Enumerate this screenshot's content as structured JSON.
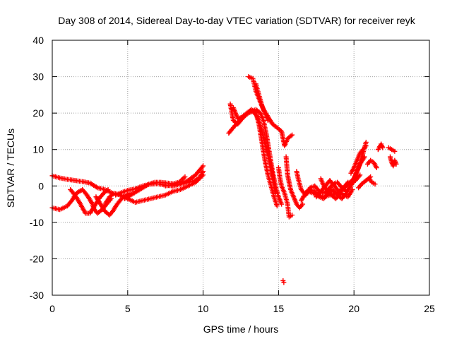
{
  "chart_data": {
    "type": "scatter",
    "title": "Day 308 of 2014, Sidereal Day-to-day VTEC variation (SDTVAR) for receiver reyk",
    "xlabel": "GPS time / hours",
    "ylabel": "SDTVAR / TECUs",
    "xlim": [
      0,
      25
    ],
    "ylim": [
      -30,
      40
    ],
    "xticks": [
      0,
      5,
      10,
      15,
      20,
      25
    ],
    "yticks": [
      -30,
      -20,
      -10,
      0,
      10,
      20,
      30,
      40
    ],
    "xtick_labels": [
      "0",
      "5",
      "10",
      "15",
      "20",
      "25"
    ],
    "ytick_labels": [
      "-30",
      "-20",
      "-10",
      "0",
      "10",
      "20",
      "30",
      "40"
    ],
    "grid": true,
    "marker": "+",
    "series": [
      {
        "name": "SDTVAR",
        "color": "#ff0000",
        "tracks": [
          [
            [
              0,
              2.8
            ],
            [
              0.5,
              2.2
            ],
            [
              1,
              1.8
            ],
            [
              1.5,
              1.5
            ],
            [
              2,
              1.2
            ],
            [
              2.5,
              0.8
            ],
            [
              3,
              -0.5
            ],
            [
              3.5,
              -1
            ],
            [
              4,
              -2
            ],
            [
              4.5,
              -2.5
            ]
          ],
          [
            [
              0,
              -6
            ],
            [
              0.5,
              -6.5
            ],
            [
              1,
              -5.5
            ],
            [
              1.3,
              -4
            ],
            [
              1.6,
              -2
            ],
            [
              2,
              -1
            ],
            [
              2.3,
              -2.5
            ],
            [
              2.6,
              -4.5
            ],
            [
              2.8,
              -6.5
            ],
            [
              3,
              -7.5
            ],
            [
              3.3,
              -6.5
            ],
            [
              3.6,
              -5
            ],
            [
              3.9,
              -3.5
            ]
          ],
          [
            [
              1.2,
              -1
            ],
            [
              1.5,
              -2.5
            ],
            [
              1.8,
              -4.5
            ],
            [
              2,
              -6
            ],
            [
              2.2,
              -7.5
            ],
            [
              2.5,
              -7.5
            ],
            [
              2.8,
              -5.5
            ],
            [
              3.1,
              -3.5
            ],
            [
              3.4,
              -2
            ],
            [
              3.7,
              -1
            ]
          ],
          [
            [
              2.9,
              -3
            ],
            [
              3.2,
              -5
            ],
            [
              3.5,
              -7
            ],
            [
              3.8,
              -8
            ],
            [
              4,
              -7
            ],
            [
              4.3,
              -5
            ],
            [
              4.6,
              -3.5
            ],
            [
              4.9,
              -2.5
            ],
            [
              5.2,
              -2
            ]
          ],
          [
            [
              3.5,
              -5
            ],
            [
              3.8,
              -3
            ],
            [
              4.1,
              -2
            ],
            [
              4.5,
              -2.5
            ],
            [
              5,
              -3.5
            ],
            [
              5.5,
              -4.5
            ],
            [
              6,
              -4
            ],
            [
              6.5,
              -3.5
            ],
            [
              7,
              -3
            ],
            [
              7.5,
              -2.5
            ],
            [
              8,
              -1.5
            ],
            [
              8.5,
              -1
            ],
            [
              9,
              0
            ],
            [
              9.5,
              1
            ],
            [
              10,
              3
            ]
          ],
          [
            [
              4.2,
              -2.5
            ],
            [
              4.6,
              -1.8
            ],
            [
              5,
              -1.2
            ],
            [
              5.5,
              -0.8
            ],
            [
              6,
              0
            ],
            [
              6.5,
              0.5
            ],
            [
              7,
              0.6
            ],
            [
              7.5,
              0.2
            ],
            [
              8,
              0
            ],
            [
              8.5,
              0.5
            ],
            [
              9,
              1.5
            ],
            [
              9.5,
              3
            ],
            [
              10,
              5.5
            ]
          ],
          [
            [
              4.8,
              -3.5
            ],
            [
              5.2,
              -2.5
            ],
            [
              5.6,
              -1.5
            ],
            [
              6,
              -0.5
            ],
            [
              6.4,
              0.5
            ],
            [
              6.8,
              1
            ],
            [
              7.2,
              1
            ],
            [
              7.6,
              0.8
            ],
            [
              8,
              0.6
            ],
            [
              8.4,
              1
            ],
            [
              8.8,
              2.5
            ]
          ],
          [
            [
              7.5,
              0
            ],
            [
              8,
              0.3
            ],
            [
              8.5,
              0.5
            ],
            [
              9,
              1
            ],
            [
              9.5,
              1.5
            ],
            [
              9.8,
              2.5
            ],
            [
              10,
              4
            ]
          ],
          [
            [
              11.7,
              14.5
            ],
            [
              12,
              16
            ],
            [
              12.3,
              17.5
            ],
            [
              12.6,
              19
            ],
            [
              12.9,
              20
            ],
            [
              13.2,
              20.5
            ],
            [
              13.5,
              21
            ],
            [
              13.8,
              20
            ],
            [
              14,
              18
            ],
            [
              14.2,
              14
            ],
            [
              14.4,
              9
            ],
            [
              14.6,
              4
            ],
            [
              14.8,
              0
            ],
            [
              15,
              -3
            ],
            [
              15.2,
              -5
            ]
          ],
          [
            [
              11.8,
              22.5
            ],
            [
              12,
              18
            ],
            [
              12.3,
              17
            ],
            [
              12.6,
              18.5
            ],
            [
              12.9,
              20
            ],
            [
              13.2,
              21
            ],
            [
              13.5,
              20
            ],
            [
              13.7,
              17
            ],
            [
              13.9,
              12
            ],
            [
              14.1,
              7
            ],
            [
              14.3,
              3
            ],
            [
              14.5,
              0
            ],
            [
              14.7,
              -3
            ],
            [
              14.9,
              -5.5
            ]
          ],
          [
            [
              12,
              21.5
            ],
            [
              12.3,
              18.5
            ],
            [
              12.7,
              19
            ],
            [
              13,
              20
            ],
            [
              13.3,
              20.5
            ],
            [
              13.6,
              19
            ],
            [
              13.9,
              15
            ],
            [
              14.2,
              10
            ],
            [
              14.5,
              5
            ],
            [
              14.8,
              -2
            ]
          ],
          [
            [
              13,
              30
            ],
            [
              13.3,
              29.5
            ],
            [
              13.5,
              26
            ],
            [
              13.7,
              24
            ],
            [
              14,
              21
            ],
            [
              14.3,
              19
            ],
            [
              14.6,
              17
            ],
            [
              14.9,
              16
            ],
            [
              15.2,
              15
            ],
            [
              15.4,
              11
            ],
            [
              15.6,
              13
            ],
            [
              15.9,
              14
            ]
          ],
          [
            [
              13.5,
              28
            ],
            [
              13.7,
              25
            ],
            [
              13.9,
              22
            ],
            [
              14.1,
              20
            ],
            [
              14.3,
              18
            ]
          ],
          [
            [
              15,
              5
            ],
            [
              15.1,
              2
            ],
            [
              15.2,
              0
            ],
            [
              15.4,
              -2
            ],
            [
              15.6,
              -5
            ],
            [
              15.7,
              -8.5
            ],
            [
              15.9,
              -8
            ]
          ],
          [
            [
              15.3,
              -26
            ],
            [
              15.35,
              -26.5
            ]
          ],
          [
            [
              15.5,
              8
            ],
            [
              15.6,
              3
            ],
            [
              15.8,
              -1
            ],
            [
              16,
              -3
            ],
            [
              16.2,
              -5
            ],
            [
              16.4,
              -6
            ],
            [
              16.6,
              -5
            ]
          ],
          [
            [
              16.2,
              4
            ],
            [
              16.3,
              2
            ],
            [
              16.5,
              -1
            ],
            [
              16.7,
              -2
            ],
            [
              17,
              -1.5
            ],
            [
              17.3,
              -2
            ],
            [
              17.6,
              -2.5
            ],
            [
              18,
              -3
            ],
            [
              18.4,
              -2.5
            ],
            [
              18.8,
              -2
            ],
            [
              19.2,
              -1
            ],
            [
              19.6,
              0.5
            ],
            [
              20,
              2
            ],
            [
              20.3,
              5
            ],
            [
              20.6,
              9
            ],
            [
              20.8,
              12
            ]
          ],
          [
            [
              16.5,
              -4
            ],
            [
              16.8,
              -2
            ],
            [
              17.1,
              -0.5
            ],
            [
              17.4,
              0
            ],
            [
              17.7,
              -1.5
            ],
            [
              18,
              -2
            ],
            [
              18.3,
              -1
            ],
            [
              18.6,
              0.5
            ],
            [
              18.9,
              1
            ],
            [
              19.2,
              -0.5
            ],
            [
              19.5,
              -1.5
            ],
            [
              19.8,
              0
            ],
            [
              20.1,
              3
            ],
            [
              20.4,
              6
            ],
            [
              20.7,
              8
            ]
          ],
          [
            [
              16.8,
              -2.5
            ],
            [
              17.1,
              -1
            ],
            [
              17.4,
              -1.5
            ],
            [
              17.7,
              -3
            ],
            [
              18,
              -3.5
            ],
            [
              18.3,
              -2
            ],
            [
              18.6,
              -1
            ],
            [
              18.9,
              -2.5
            ],
            [
              19.2,
              -3.5
            ],
            [
              19.5,
              -2
            ],
            [
              19.8,
              0.5
            ],
            [
              20.1,
              1.5
            ],
            [
              20.4,
              3
            ]
          ],
          [
            [
              17.5,
              -3
            ],
            [
              17.8,
              -1.5
            ],
            [
              18.1,
              0
            ],
            [
              18.4,
              1.5
            ],
            [
              18.7,
              0
            ],
            [
              19,
              -1.5
            ],
            [
              19.3,
              -2.5
            ],
            [
              19.6,
              -3
            ],
            [
              19.9,
              -1
            ]
          ],
          [
            [
              17.8,
              2
            ],
            [
              18,
              0
            ],
            [
              18.2,
              -1
            ],
            [
              18.5,
              -2.5
            ],
            [
              18.8,
              -3.5
            ],
            [
              19,
              -2.5
            ],
            [
              19.3,
              -0.5
            ],
            [
              19.6,
              1
            ]
          ],
          [
            [
              19.8,
              3.5
            ],
            [
              20,
              5
            ],
            [
              20.2,
              7
            ],
            [
              20.4,
              9
            ],
            [
              20.6,
              10
            ],
            [
              20.8,
              11
            ]
          ],
          [
            [
              20.3,
              -0.5
            ],
            [
              20.5,
              0.5
            ],
            [
              20.8,
              1.5
            ],
            [
              21.1,
              2.5
            ]
          ],
          [
            [
              20.9,
              6
            ],
            [
              21.1,
              7
            ],
            [
              21.3,
              6.5
            ],
            [
              21.5,
              5
            ]
          ],
          [
            [
              21,
              2
            ],
            [
              21.2,
              1
            ],
            [
              21.4,
              0.5
            ]
          ],
          [
            [
              21.6,
              10
            ],
            [
              21.8,
              11.5
            ],
            [
              21.9,
              10.5
            ]
          ],
          [
            [
              22.3,
              10.5
            ],
            [
              22.5,
              10
            ],
            [
              22.7,
              9.5
            ]
          ],
          [
            [
              22.4,
              8
            ],
            [
              22.5,
              6.5
            ],
            [
              22.6,
              5.5
            ],
            [
              22.7,
              7
            ],
            [
              22.8,
              6
            ]
          ]
        ]
      }
    ]
  }
}
